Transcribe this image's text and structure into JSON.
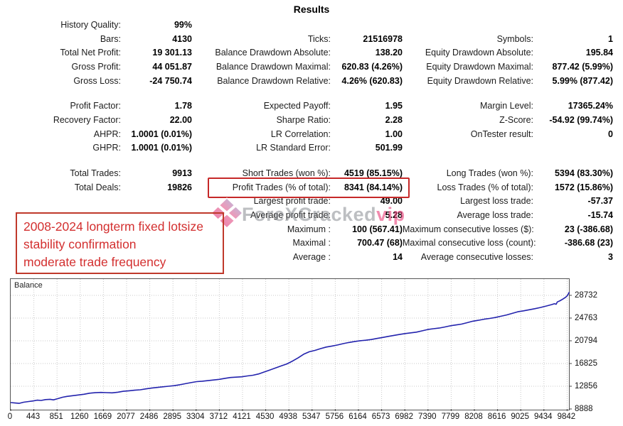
{
  "title": "Results",
  "stats": {
    "rows": [
      {
        "c1l": "History Quality:",
        "c1v": "99%",
        "c2l": "",
        "c2v": "",
        "c3l": "",
        "c3v": "",
        "gap": false
      },
      {
        "c1l": "Bars:",
        "c1v": "4130",
        "c2l": "Ticks:",
        "c2v": "21516978",
        "c3l": "Symbols:",
        "c3v": "1",
        "gap": false
      },
      {
        "c1l": "Total Net Profit:",
        "c1v": "19 301.13",
        "c2l": "Balance Drawdown Absolute:",
        "c2v": "138.20",
        "c3l": "Equity Drawdown Absolute:",
        "c3v": "195.84",
        "gap": false
      },
      {
        "c1l": "Gross Profit:",
        "c1v": "44 051.87",
        "c2l": "Balance Drawdown Maximal:",
        "c2v": "620.83 (4.26%)",
        "c3l": "Equity Drawdown Maximal:",
        "c3v": "877.42 (5.99%)",
        "gap": false
      },
      {
        "c1l": "Gross Loss:",
        "c1v": "-24 750.74",
        "c2l": "Balance Drawdown Relative:",
        "c2v": "4.26% (620.83)",
        "c3l": "Equity Drawdown Relative:",
        "c3v": "5.99% (877.42)",
        "gap": false
      },
      {
        "c1l": "Profit Factor:",
        "c1v": "1.78",
        "c2l": "Expected Payoff:",
        "c2v": "1.95",
        "c3l": "Margin Level:",
        "c3v": "17365.24%",
        "gap": true
      },
      {
        "c1l": "Recovery Factor:",
        "c1v": "22.00",
        "c2l": "Sharpe Ratio:",
        "c2v": "2.28",
        "c3l": "Z-Score:",
        "c3v": "-54.92 (99.74%)",
        "gap": false
      },
      {
        "c1l": "AHPR:",
        "c1v": "1.0001 (0.01%)",
        "c2l": "LR Correlation:",
        "c2v": "1.00",
        "c3l": "OnTester result:",
        "c3v": "0",
        "gap": false
      },
      {
        "c1l": "GHPR:",
        "c1v": "1.0001 (0.01%)",
        "c2l": "LR Standard Error:",
        "c2v": "501.99",
        "c3l": "",
        "c3v": "",
        "gap": false
      },
      {
        "c1l": "Total Trades:",
        "c1v": "9913",
        "c2l": "Short Trades (won %):",
        "c2v": "4519 (85.15%)",
        "c3l": "Long Trades (won %):",
        "c3v": "5394 (83.30%)",
        "gap": true
      },
      {
        "c1l": "Total Deals:",
        "c1v": "19826",
        "c2l": "Profit Trades (% of total):",
        "c2v": "8341 (84.14%)",
        "c3l": "Loss Trades (% of total):",
        "c3v": "1572 (15.86%)",
        "gap": false
      },
      {
        "c1l": "",
        "c1v": "",
        "c2l": "Largest profit trade:",
        "c2v": "49.00",
        "c3l": "Largest loss trade:",
        "c3v": "-57.37",
        "gap": false
      },
      {
        "c1l": "",
        "c1v": "",
        "c2l": "Average profit trade:",
        "c2v": "5.28",
        "c3l": "Average loss trade:",
        "c3v": "-15.74",
        "gap": false
      },
      {
        "c1l": "",
        "c1v": "",
        "c2l": "Maximum :",
        "c2v": "100 (567.41)",
        "c3l": "Maximum consecutive losses ($):",
        "c3v": "23 (-386.68)",
        "gap": false
      },
      {
        "c1l": "",
        "c1v": "",
        "c2l": "Maximal :",
        "c2v": "700.47 (68)",
        "c3l": "Maximal consecutive loss (count):",
        "c3v": "-386.68 (23)",
        "gap": false
      },
      {
        "c1l": "",
        "c1v": "",
        "c2l": "Average :",
        "c2v": "14",
        "c3l": "Average consecutive losses:",
        "c3v": "3",
        "gap": false
      }
    ]
  },
  "annotation": {
    "lines": [
      "2008-2024 longterm fixed lotsize",
      "stability confirmation",
      "moderate trade frequency"
    ],
    "border_color": "#c0392b",
    "text_color": "#d32f2f"
  },
  "highlight": {
    "target": "Profit Trades (% of total)",
    "border_color": "#c62828"
  },
  "watermark": {
    "main": "ForeXCracked",
    "accent": "vip"
  },
  "chart_data": {
    "type": "line",
    "title": "Balance",
    "xlabel": "",
    "ylabel": "",
    "x_ticks": [
      0,
      443,
      851,
      1260,
      1669,
      2077,
      2486,
      2895,
      3304,
      3712,
      4121,
      4530,
      4938,
      5347,
      5756,
      6164,
      6573,
      6982,
      7390,
      7799,
      8208,
      8616,
      9025,
      9434,
      9842
    ],
    "y_ticks": [
      8888,
      12856,
      16825,
      20794,
      24763,
      28732
    ],
    "x_range": [
      0,
      9913
    ],
    "y_range": [
      8888,
      32000
    ],
    "grid": "dotted",
    "legend_position": "top-left-inside",
    "line_color": "#2323ad",
    "series": [
      {
        "name": "Balance",
        "points": [
          [
            0,
            10000
          ],
          [
            80,
            9930
          ],
          [
            150,
            9870
          ],
          [
            230,
            10060
          ],
          [
            320,
            10190
          ],
          [
            400,
            10290
          ],
          [
            470,
            10420
          ],
          [
            540,
            10380
          ],
          [
            620,
            10520
          ],
          [
            700,
            10570
          ],
          [
            760,
            10480
          ],
          [
            840,
            10700
          ],
          [
            920,
            10930
          ],
          [
            1000,
            11080
          ],
          [
            1100,
            11210
          ],
          [
            1200,
            11330
          ],
          [
            1300,
            11450
          ],
          [
            1400,
            11640
          ],
          [
            1500,
            11730
          ],
          [
            1600,
            11780
          ],
          [
            1700,
            11740
          ],
          [
            1800,
            11700
          ],
          [
            1900,
            11820
          ],
          [
            2000,
            11980
          ],
          [
            2100,
            12060
          ],
          [
            2200,
            12160
          ],
          [
            2300,
            12240
          ],
          [
            2400,
            12400
          ],
          [
            2500,
            12530
          ],
          [
            2600,
            12640
          ],
          [
            2700,
            12760
          ],
          [
            2800,
            12850
          ],
          [
            2900,
            12950
          ],
          [
            3000,
            13120
          ],
          [
            3100,
            13300
          ],
          [
            3200,
            13490
          ],
          [
            3300,
            13660
          ],
          [
            3400,
            13740
          ],
          [
            3500,
            13830
          ],
          [
            3600,
            13950
          ],
          [
            3700,
            14060
          ],
          [
            3800,
            14230
          ],
          [
            3900,
            14380
          ],
          [
            4000,
            14440
          ],
          [
            4100,
            14510
          ],
          [
            4200,
            14650
          ],
          [
            4300,
            14780
          ],
          [
            4400,
            15000
          ],
          [
            4500,
            15350
          ],
          [
            4600,
            15700
          ],
          [
            4700,
            16050
          ],
          [
            4800,
            16400
          ],
          [
            4900,
            16750
          ],
          [
            5000,
            17250
          ],
          [
            5100,
            17800
          ],
          [
            5200,
            18450
          ],
          [
            5300,
            18880
          ],
          [
            5400,
            19120
          ],
          [
            5500,
            19430
          ],
          [
            5600,
            19700
          ],
          [
            5700,
            19880
          ],
          [
            5800,
            20060
          ],
          [
            5900,
            20290
          ],
          [
            6000,
            20500
          ],
          [
            6100,
            20660
          ],
          [
            6200,
            20800
          ],
          [
            6300,
            20890
          ],
          [
            6400,
            21010
          ],
          [
            6500,
            21200
          ],
          [
            6600,
            21380
          ],
          [
            6700,
            21560
          ],
          [
            6800,
            21740
          ],
          [
            6900,
            21900
          ],
          [
            7000,
            22060
          ],
          [
            7100,
            22180
          ],
          [
            7200,
            22310
          ],
          [
            7300,
            22530
          ],
          [
            7400,
            22760
          ],
          [
            7500,
            22900
          ],
          [
            7600,
            23010
          ],
          [
            7700,
            23200
          ],
          [
            7800,
            23410
          ],
          [
            7900,
            23560
          ],
          [
            8000,
            23710
          ],
          [
            8100,
            23960
          ],
          [
            8200,
            24210
          ],
          [
            8300,
            24380
          ],
          [
            8400,
            24560
          ],
          [
            8500,
            24700
          ],
          [
            8600,
            24860
          ],
          [
            8700,
            25080
          ],
          [
            8800,
            25310
          ],
          [
            8900,
            25580
          ],
          [
            9000,
            25860
          ],
          [
            9100,
            26030
          ],
          [
            9200,
            26210
          ],
          [
            9300,
            26400
          ],
          [
            9400,
            26610
          ],
          [
            9500,
            26860
          ],
          [
            9600,
            27120
          ],
          [
            9650,
            27280
          ],
          [
            9680,
            27180
          ],
          [
            9700,
            27580
          ],
          [
            9750,
            27800
          ],
          [
            9800,
            28080
          ],
          [
            9850,
            28400
          ],
          [
            9880,
            28700
          ],
          [
            9913,
            29300
          ]
        ]
      }
    ]
  }
}
